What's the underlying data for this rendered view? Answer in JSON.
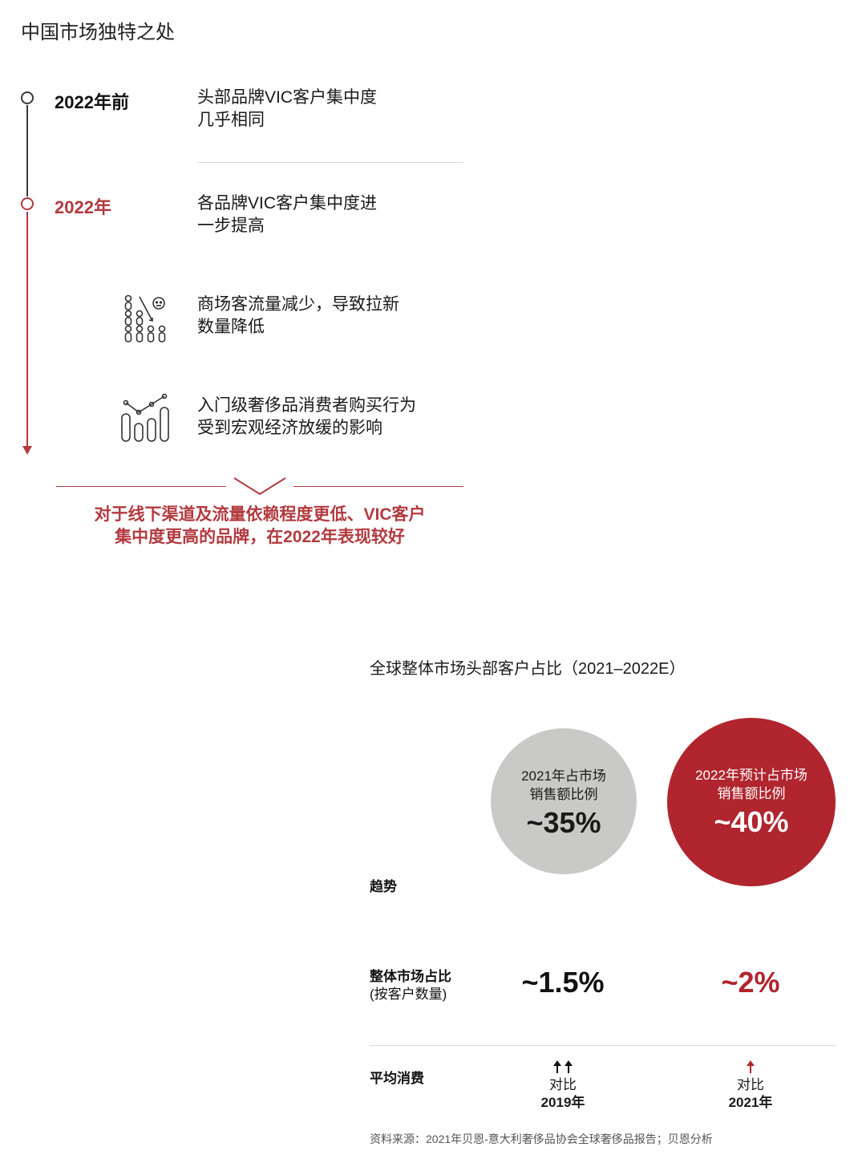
{
  "page_title": "中国市场独特之处",
  "timeline": {
    "before": {
      "year": "2022年前",
      "text_line1": "头部品牌VIC客户集中度",
      "text_line2": "几乎相同"
    },
    "current": {
      "year": "2022年",
      "text_line1": "各品牌VIC客户集中度进",
      "text_line2": "一步提高"
    },
    "factors": [
      {
        "icon": "crowd-decline-icon",
        "line1": "商场客流量减少，导致拉新",
        "line2": "数量降低"
      },
      {
        "icon": "bar-chart-trend-icon",
        "line1": "入门级奢侈品消费者购买行为",
        "line2": "受到宏观经济放缓的影响"
      }
    ]
  },
  "conclusion": {
    "line1": "对于线下渠道及流量依赖程度更低、VIC客户",
    "line2": "集中度更高的品牌，在2022年表现较好"
  },
  "chart": {
    "title": "全球整体市场头部客户占比（2021–2022E）",
    "circle_2021": {
      "label_line1": "2021年占市场",
      "label_line2": "销售额比例",
      "value": "~35%",
      "color": "#c9c9c7"
    },
    "circle_2022": {
      "label_line1": "2022年预计占市场",
      "label_line2": "销售额比例",
      "value": "~40%",
      "color": "#b0252e"
    },
    "row_trend": {
      "label": "趋势"
    },
    "row_share": {
      "label_line1": "整体市场占比",
      "label_line2": "(按客户数量)",
      "value_2021": "~1.5%",
      "value_2022": "~2%"
    },
    "row_spend": {
      "label": "平均消费",
      "cmp_2021": {
        "arrows": "up-up",
        "line1": "对比",
        "line2": "2019年"
      },
      "cmp_2022": {
        "arrows": "up",
        "line1": "对比",
        "line2": "2021年"
      }
    }
  },
  "source": "资料来源：2021年贝恩-意大利奢侈品协会全球奢侈品报告；贝恩分析"
}
